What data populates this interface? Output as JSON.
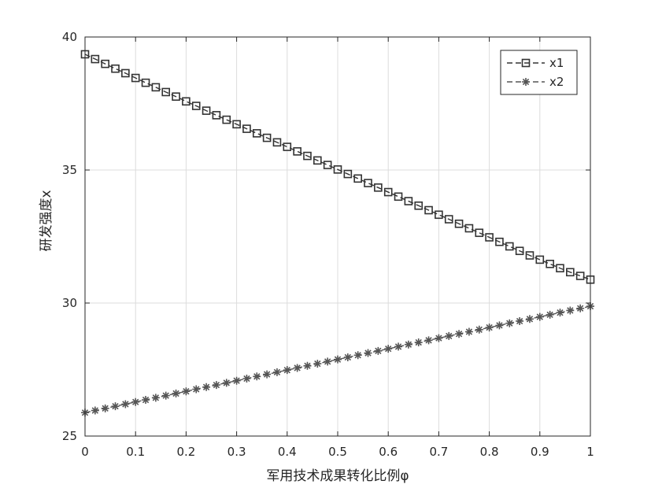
{
  "chart_data": {
    "type": "line",
    "title": "",
    "xlabel": "军用技术成果转化比例φ",
    "ylabel": "研发强度x",
    "xlim": [
      0,
      1
    ],
    "ylim": [
      25,
      40
    ],
    "xticks": [
      "0",
      "0.1",
      "0.2",
      "0.3",
      "0.4",
      "0.5",
      "0.6",
      "0.7",
      "0.8",
      "0.9",
      "1"
    ],
    "yticks": [
      "25",
      "30",
      "35",
      "40"
    ],
    "grid": true,
    "legend_position": "top-right",
    "x": [
      0,
      0.02,
      0.04,
      0.06,
      0.08,
      0.1,
      0.12,
      0.14,
      0.16,
      0.18,
      0.2,
      0.22,
      0.24,
      0.26,
      0.28,
      0.3,
      0.32,
      0.34,
      0.36,
      0.38,
      0.4,
      0.42,
      0.44,
      0.46,
      0.48,
      0.5,
      0.52,
      0.54,
      0.56,
      0.58,
      0.6,
      0.62,
      0.64,
      0.66,
      0.68,
      0.7,
      0.72,
      0.74,
      0.76,
      0.78,
      0.8,
      0.82,
      0.84,
      0.86,
      0.88,
      0.9,
      0.92,
      0.94,
      0.96,
      0.98,
      1
    ],
    "series": [
      {
        "name": "x1",
        "marker": "square",
        "line": "dashed",
        "color": "#333333",
        "values": [
          39.35,
          39.17,
          38.99,
          38.81,
          38.64,
          38.46,
          38.28,
          38.11,
          37.93,
          37.76,
          37.58,
          37.41,
          37.23,
          37.06,
          36.89,
          36.72,
          36.55,
          36.38,
          36.21,
          36.04,
          35.87,
          35.7,
          35.53,
          35.36,
          35.19,
          35.02,
          34.85,
          34.68,
          34.51,
          34.34,
          34.17,
          34.0,
          33.83,
          33.66,
          33.49,
          33.32,
          33.15,
          32.98,
          32.81,
          32.64,
          32.47,
          32.3,
          32.13,
          31.96,
          31.79,
          31.63,
          31.47,
          31.31,
          31.16,
          31.02,
          30.88
        ]
      },
      {
        "name": "x2",
        "marker": "asterisk",
        "line": "dashed",
        "color": "#555555",
        "values": [
          25.88,
          25.96,
          26.04,
          26.12,
          26.2,
          26.28,
          26.36,
          26.44,
          26.52,
          26.6,
          26.68,
          26.76,
          26.84,
          26.92,
          27.0,
          27.08,
          27.16,
          27.24,
          27.32,
          27.4,
          27.48,
          27.56,
          27.64,
          27.72,
          27.8,
          27.88,
          27.96,
          28.04,
          28.12,
          28.2,
          28.28,
          28.36,
          28.44,
          28.52,
          28.6,
          28.68,
          28.76,
          28.84,
          28.92,
          29.0,
          29.08,
          29.16,
          29.24,
          29.32,
          29.4,
          29.48,
          29.56,
          29.64,
          29.72,
          29.8,
          29.88
        ]
      }
    ]
  }
}
